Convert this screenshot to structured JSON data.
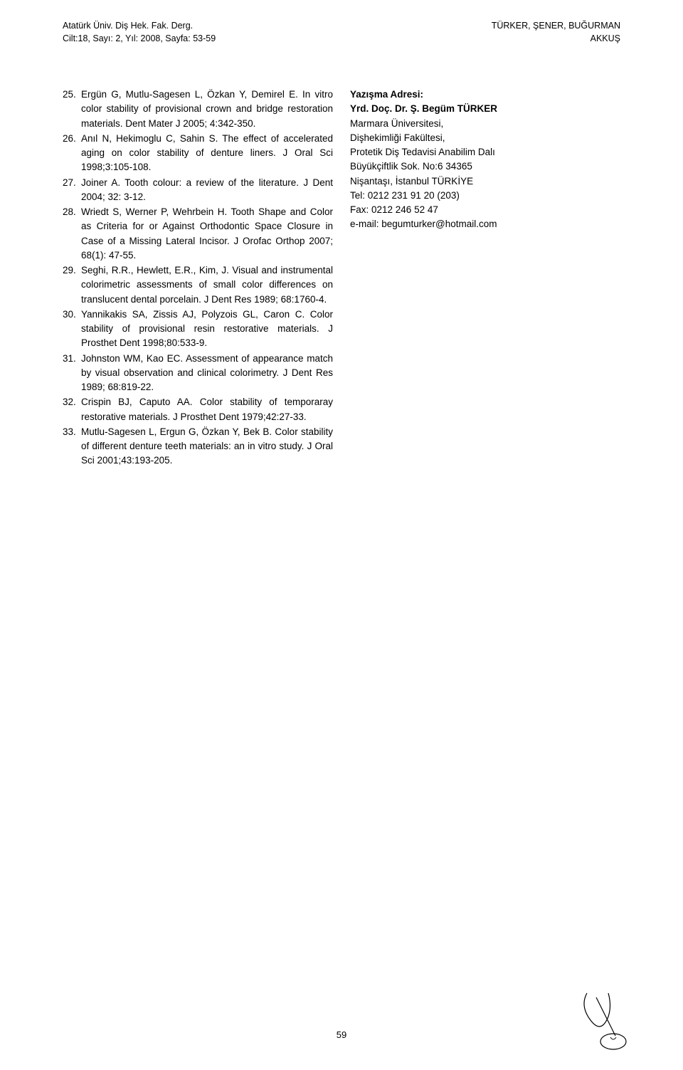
{
  "header": {
    "left_line1": "Atatürk Üniv. Diş Hek. Fak. Derg.",
    "left_line2": "Cilt:18, Sayı: 2, Yıl: 2008, Sayfa: 53-59",
    "right_line1": "TÜRKER, ŞENER, BUĞURMAN",
    "right_line2": "AKKUŞ"
  },
  "references": [
    {
      "num": "25.",
      "text": "Ergün G, Mutlu-Sagesen L, Özkan Y, Demirel E. In vitro color stability of provisional crown and bridge restoration materials. Dent Mater J 2005; 4:342-350."
    },
    {
      "num": "26.",
      "text": "Anıl N, Hekimoglu C, Sahin S. The effect of accelerated aging on color stability of denture liners. J Oral Sci 1998;3:105-108."
    },
    {
      "num": "27.",
      "text": "Joiner A. Tooth colour: a review of the literature. J Dent 2004; 32: 3-12."
    },
    {
      "num": "28.",
      "text": "Wriedt S, Werner P, Wehrbein H. Tooth Shape and Color as Criteria for or Against Orthodontic Space Closure in Case of a Missing Lateral Incisor. J Orofac Orthop 2007; 68(1): 47-55."
    },
    {
      "num": "29.",
      "text": "Seghi, R.R., Hewlett, E.R., Kim, J. Visual and instrumental colorimetric assessments of small color differences on translucent dental porcelain. J Dent Res 1989; 68:1760-4."
    },
    {
      "num": "30.",
      "text": "Yannikakis SA, Zissis AJ, Polyzois GL, Caron C. Color stability of provisional resin restorative materials. J Prosthet Dent 1998;80:533-9."
    },
    {
      "num": "31.",
      "text": "Johnston WM, Kao EC. Assessment of appearance match by visual observation and clinical colorimetry. J Dent Res 1989; 68:819-22."
    },
    {
      "num": "32.",
      "text": "Crispin BJ, Caputo AA. Color stability of temporaray restorative materials. J Prosthet Dent 1979;42:27-33."
    },
    {
      "num": "33.",
      "text": "Mutlu-Sagesen L, Ergun G, Özkan Y, Bek B. Color stability of different denture teeth materials: an in vitro study. J Oral Sci 2001;43:193-205."
    }
  ],
  "contact": {
    "heading": "Yazışma Adresi:",
    "name": "Yrd. Doç. Dr. Ş. Begüm TÜRKER",
    "line1": "Marmara Üniversitesi,",
    "line2": "Dişhekimliği Fakültesi,",
    "line3": "Protetik Diş Tedavisi Anabilim Dalı",
    "line4": "Büyükçiftlik Sok. No:6 34365",
    "line5": "Nişantaşı, İstanbul TÜRKİYE",
    "line6": "Tel: 0212 231 91 20 (203)",
    "line7": "Fax: 0212 246 52 47",
    "line8": "e-mail: begumturker@hotmail.com"
  },
  "page_number": "59",
  "colors": {
    "background": "#ffffff",
    "text": "#000000",
    "signature_stroke": "#000000"
  },
  "typography": {
    "body_fontsize": 13.5,
    "header_fontsize": 12.5,
    "font_family": "Verdana"
  }
}
